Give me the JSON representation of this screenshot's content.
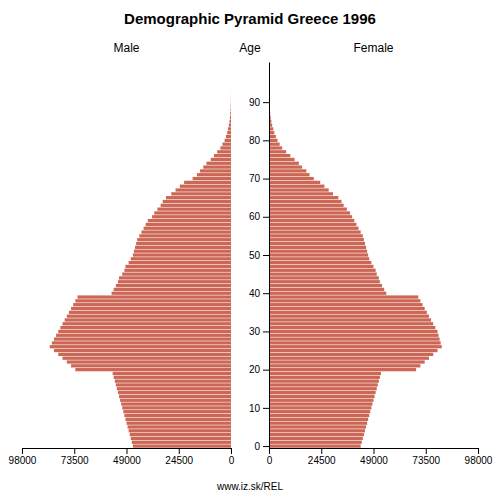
{
  "chart_data": {
    "type": "bar",
    "orientation": "horizontal",
    "title": "Demographic Pyramid Greece 1996",
    "y_label": "Age",
    "annotations": [
      "www.iz.sk/REL"
    ],
    "grid": false,
    "y": [
      0,
      1,
      2,
      3,
      4,
      5,
      6,
      7,
      8,
      9,
      10,
      11,
      12,
      13,
      14,
      15,
      16,
      17,
      18,
      19,
      20,
      21,
      22,
      23,
      24,
      25,
      26,
      27,
      28,
      29,
      30,
      31,
      32,
      33,
      34,
      35,
      36,
      37,
      38,
      39,
      40,
      41,
      42,
      43,
      44,
      45,
      46,
      47,
      48,
      49,
      50,
      51,
      52,
      53,
      54,
      55,
      56,
      57,
      58,
      59,
      60,
      61,
      62,
      63,
      64,
      65,
      66,
      67,
      68,
      69,
      70,
      71,
      72,
      73,
      74,
      75,
      76,
      77,
      78,
      79,
      80,
      81,
      82,
      83,
      84,
      85,
      86,
      87,
      88,
      89,
      90,
      91,
      92,
      93,
      94,
      95,
      96,
      97,
      98,
      99
    ],
    "ylim": [
      -0.5,
      100.5
    ],
    "yticks": [
      0,
      10,
      20,
      30,
      40,
      50,
      60,
      70,
      80,
      90
    ],
    "xlim": [
      0,
      98000
    ],
    "xticks": [
      0,
      24500,
      49000,
      73500,
      98000
    ],
    "series": [
      {
        "name": "Male",
        "color": "#cc6655",
        "values": [
          46000,
          46500,
          47000,
          47500,
          48000,
          48500,
          49000,
          49500,
          50000,
          50500,
          51000,
          51500,
          52000,
          52500,
          53000,
          53500,
          54000,
          54500,
          55000,
          55500,
          73000,
          75000,
          77000,
          79000,
          81000,
          83000,
          85000,
          84000,
          83000,
          82000,
          81000,
          80000,
          79000,
          78000,
          77000,
          76000,
          75000,
          74000,
          73000,
          72000,
          56000,
          55000,
          54000,
          53000,
          52500,
          51000,
          50000,
          49500,
          48000,
          47000,
          46000,
          45500,
          45000,
          44500,
          44000,
          43000,
          42000,
          41000,
          40000,
          39000,
          37000,
          36000,
          34500,
          33000,
          32000,
          30500,
          28000,
          26000,
          24000,
          22000,
          18000,
          16000,
          14500,
          13000,
          11500,
          9500,
          8000,
          6500,
          5000,
          4000,
          3000,
          2400,
          1800,
          1400,
          1000,
          700,
          500,
          350,
          230,
          150,
          90,
          55,
          35,
          20,
          12,
          7,
          4,
          2,
          1,
          1
        ]
      },
      {
        "name": "Female",
        "color": "#cc6655",
        "values": [
          43000,
          43500,
          44000,
          44500,
          45000,
          45500,
          46000,
          46500,
          47000,
          47500,
          48000,
          48500,
          49000,
          49500,
          50000,
          50500,
          51000,
          51500,
          52000,
          52500,
          69000,
          71000,
          73000,
          75000,
          77000,
          79000,
          81000,
          80500,
          80000,
          79500,
          79000,
          78000,
          77000,
          76000,
          75000,
          74000,
          73000,
          72000,
          71000,
          70000,
          55000,
          54000,
          53000,
          52000,
          51500,
          50500,
          50000,
          49000,
          48000,
          47000,
          46500,
          46000,
          45500,
          45000,
          44500,
          44000,
          43000,
          42000,
          41000,
          40000,
          39000,
          38000,
          36500,
          35000,
          34000,
          32500,
          30000,
          28000,
          26000,
          24000,
          21000,
          19000,
          17500,
          15500,
          14000,
          12000,
          10000,
          8000,
          6200,
          5000,
          4000,
          3200,
          2500,
          2000,
          1500,
          1100,
          800,
          550,
          360,
          230,
          140,
          85,
          50,
          28,
          15,
          8,
          4,
          2,
          1,
          1
        ]
      }
    ]
  }
}
